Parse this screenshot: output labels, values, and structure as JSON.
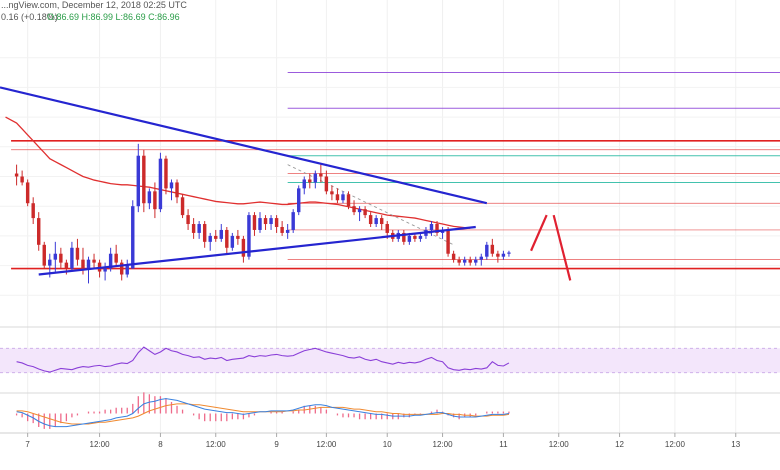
{
  "header": {
    "line1": "...ngView.com, December 12, 2018 02:25 UTC",
    "line2_change": "0.16 (+0.18%)",
    "line2_ohlc": "O:86.69 H:86.99 L:86.69 C:86.96"
  },
  "colors": {
    "bull": "#3a3ad6",
    "bear": "#cc2a2a",
    "trendline": "#2525d0",
    "ma": "#e03030",
    "horizontal": "#e02020",
    "fib_purple": "#8a3fd8",
    "fib_teal": "#23b8a0",
    "rsi": "#8a3fd8",
    "rsi_band": "#f3e6fb",
    "macd": "#3a82e0",
    "signal": "#f08a30",
    "hist": "#ee6a8a"
  },
  "chart_data": {
    "type": "candlestick",
    "instrument_price_range": [
      85.0,
      90.0
    ],
    "candles": [
      [
        1,
        87.55,
        87.7,
        87.35,
        87.5
      ],
      [
        2,
        87.5,
        87.6,
        87.35,
        87.4
      ],
      [
        3,
        87.4,
        87.45,
        87.0,
        87.05
      ],
      [
        4,
        87.05,
        87.15,
        86.7,
        86.8
      ],
      [
        5,
        86.8,
        86.9,
        86.25,
        86.35
      ],
      [
        6,
        86.35,
        86.4,
        85.95,
        86.0
      ],
      [
        7,
        86.0,
        86.2,
        85.8,
        86.1
      ],
      [
        8,
        86.1,
        86.4,
        85.9,
        86.2
      ],
      [
        9,
        86.2,
        86.3,
        85.95,
        86.05
      ],
      [
        10,
        86.05,
        86.1,
        85.85,
        85.95
      ],
      [
        11,
        85.95,
        86.4,
        85.9,
        86.3
      ],
      [
        12,
        86.3,
        86.45,
        86.0,
        86.1
      ],
      [
        13,
        86.1,
        86.3,
        85.85,
        85.95
      ],
      [
        14,
        85.95,
        86.15,
        85.7,
        86.1
      ],
      [
        15,
        86.1,
        86.2,
        85.95,
        86.05
      ],
      [
        16,
        86.05,
        86.1,
        85.8,
        85.9
      ],
      [
        17,
        85.9,
        86.05,
        85.75,
        85.95
      ],
      [
        18,
        85.95,
        86.3,
        85.9,
        86.2
      ],
      [
        19,
        86.2,
        86.35,
        86.0,
        86.05
      ],
      [
        20,
        86.05,
        86.1,
        85.75,
        85.85
      ],
      [
        21,
        85.85,
        86.1,
        85.8,
        86.0
      ],
      [
        22,
        85.95,
        87.1,
        85.95,
        87.0
      ],
      [
        23,
        87.0,
        88.05,
        86.9,
        87.85
      ],
      [
        24,
        87.85,
        87.95,
        86.9,
        87.05
      ],
      [
        25,
        87.05,
        87.3,
        86.95,
        87.25
      ],
      [
        26,
        87.25,
        87.4,
        86.8,
        86.95
      ],
      [
        27,
        86.95,
        87.9,
        86.9,
        87.8
      ],
      [
        28,
        87.8,
        87.85,
        87.2,
        87.3
      ],
      [
        29,
        87.3,
        87.45,
        87.1,
        87.4
      ],
      [
        30,
        87.4,
        87.45,
        87.05,
        87.15
      ],
      [
        31,
        87.15,
        87.2,
        86.8,
        86.85
      ],
      [
        32,
        86.85,
        86.95,
        86.6,
        86.7
      ],
      [
        33,
        86.7,
        86.8,
        86.45,
        86.55
      ],
      [
        34,
        86.55,
        86.75,
        86.45,
        86.7
      ],
      [
        35,
        86.7,
        86.75,
        86.3,
        86.4
      ],
      [
        36,
        86.4,
        86.55,
        86.25,
        86.5
      ],
      [
        37,
        86.5,
        86.6,
        86.4,
        86.45
      ],
      [
        38,
        86.45,
        86.7,
        86.4,
        86.6
      ],
      [
        39,
        86.6,
        86.65,
        86.2,
        86.3
      ],
      [
        40,
        86.3,
        86.55,
        86.25,
        86.5
      ],
      [
        41,
        86.5,
        86.6,
        86.35,
        86.45
      ],
      [
        42,
        86.45,
        86.5,
        86.05,
        86.15
      ],
      [
        43,
        86.15,
        86.9,
        86.1,
        86.85
      ],
      [
        44,
        86.85,
        86.9,
        86.5,
        86.6
      ],
      [
        45,
        86.6,
        86.9,
        86.55,
        86.8
      ],
      [
        46,
        86.8,
        86.85,
        86.6,
        86.7
      ],
      [
        47,
        86.7,
        86.85,
        86.6,
        86.8
      ],
      [
        48,
        86.8,
        86.85,
        86.55,
        86.65
      ],
      [
        49,
        86.65,
        86.75,
        86.5,
        86.55
      ],
      [
        50,
        86.55,
        86.7,
        86.45,
        86.6
      ],
      [
        51,
        86.6,
        86.95,
        86.55,
        86.9
      ],
      [
        52,
        86.9,
        87.35,
        86.85,
        87.3
      ],
      [
        53,
        87.3,
        87.5,
        87.2,
        87.45
      ],
      [
        54,
        87.45,
        87.55,
        87.3,
        87.4
      ],
      [
        55,
        87.4,
        87.6,
        87.3,
        87.55
      ],
      [
        56,
        87.55,
        87.7,
        87.4,
        87.5
      ],
      [
        57,
        87.5,
        87.6,
        87.2,
        87.25
      ],
      [
        58,
        87.25,
        87.35,
        87.1,
        87.2
      ],
      [
        59,
        87.2,
        87.3,
        87.05,
        87.1
      ],
      [
        60,
        87.1,
        87.25,
        87.05,
        87.2
      ],
      [
        61,
        87.2,
        87.25,
        86.95,
        87.0
      ],
      [
        62,
        87.0,
        87.1,
        86.85,
        86.9
      ],
      [
        63,
        86.9,
        87.0,
        86.75,
        86.95
      ],
      [
        64,
        86.95,
        87.0,
        86.8,
        86.85
      ],
      [
        65,
        86.85,
        86.9,
        86.65,
        86.7
      ],
      [
        66,
        86.7,
        86.85,
        86.65,
        86.8
      ],
      [
        67,
        86.8,
        86.85,
        86.6,
        86.7
      ],
      [
        68,
        86.7,
        86.75,
        86.45,
        86.55
      ],
      [
        69,
        86.55,
        86.6,
        86.4,
        86.45
      ],
      [
        70,
        86.45,
        86.6,
        86.4,
        86.55
      ],
      [
        71,
        86.55,
        86.6,
        86.35,
        86.4
      ],
      [
        72,
        86.4,
        86.55,
        86.35,
        86.5
      ],
      [
        73,
        86.5,
        86.55,
        86.4,
        86.45
      ],
      [
        74,
        86.45,
        86.55,
        86.4,
        86.5
      ],
      [
        75,
        86.5,
        86.65,
        86.45,
        86.6
      ],
      [
        76,
        86.6,
        86.75,
        86.5,
        86.7
      ],
      [
        77,
        86.7,
        86.75,
        86.5,
        86.55
      ],
      [
        78,
        86.55,
        86.65,
        86.45,
        86.6
      ],
      [
        79,
        86.6,
        86.65,
        86.15,
        86.2
      ],
      [
        80,
        86.2,
        86.25,
        86.05,
        86.1
      ],
      [
        81,
        86.1,
        86.15,
        86.0,
        86.05
      ],
      [
        82,
        86.05,
        86.15,
        86.0,
        86.1
      ],
      [
        83,
        86.1,
        86.15,
        86.0,
        86.05
      ],
      [
        84,
        86.05,
        86.15,
        86.0,
        86.1
      ],
      [
        85,
        86.1,
        86.2,
        86.0,
        86.15
      ],
      [
        86,
        86.15,
        86.4,
        86.1,
        86.35
      ],
      [
        87,
        86.35,
        86.45,
        86.15,
        86.2
      ],
      [
        88,
        86.2,
        86.25,
        86.05,
        86.15
      ],
      [
        89,
        86.15,
        86.25,
        86.1,
        86.2
      ],
      [
        90,
        86.2,
        86.25,
        86.15,
        86.22
      ]
    ],
    "moving_average": [
      88.5,
      88.45,
      88.4,
      88.3,
      88.2,
      88.1,
      88.0,
      87.9,
      87.8,
      87.75,
      87.7,
      87.65,
      87.6,
      87.55,
      87.5,
      87.47,
      87.44,
      87.42,
      87.4,
      87.38,
      87.37,
      87.36,
      87.36,
      87.35,
      87.34,
      87.33,
      87.32,
      87.3,
      87.28,
      87.26,
      87.24,
      87.22,
      87.2,
      87.18,
      87.16,
      87.14,
      87.12,
      87.1,
      87.08,
      87.07,
      87.06,
      87.05,
      87.04,
      87.04,
      87.05,
      87.06,
      87.07,
      87.06,
      87.05,
      87.04,
      87.03,
      87.03,
      87.04,
      87.05,
      87.06,
      87.07,
      87.07,
      87.06,
      87.05,
      87.04,
      87.03,
      87.01,
      86.99,
      86.97,
      86.95,
      86.93,
      86.91,
      86.89,
      86.87,
      86.85,
      86.84,
      86.83,
      86.82,
      86.81,
      86.8,
      86.78,
      86.76,
      86.74,
      86.72,
      86.7,
      86.68,
      86.66,
      86.65,
      86.64,
      86.63
    ],
    "trendlines": [
      {
        "from": [
          -2,
          89.0
        ],
        "to": [
          86,
          87.05
        ],
        "role": "upper"
      },
      {
        "from": [
          5,
          85.85
        ],
        "to": [
          84,
          86.65
        ],
        "role": "lower"
      }
    ],
    "dashed_line": {
      "from": [
        50,
        87.7
      ],
      "to": [
        80,
        86.35
      ]
    },
    "horizontal_levels": [
      {
        "price": 88.1,
        "kind": "major",
        "from": 0
      },
      {
        "price": 87.95,
        "kind": "minor",
        "from": 0
      },
      {
        "price": 85.95,
        "kind": "major",
        "from": 0
      },
      {
        "price": 87.55,
        "kind": "thin",
        "from": 50
      },
      {
        "price": 87.05,
        "kind": "thin",
        "from": 50
      },
      {
        "price": 86.6,
        "kind": "thin",
        "from": 50
      },
      {
        "price": 86.1,
        "kind": "thin",
        "from": 50
      }
    ],
    "fib_levels": [
      {
        "price": 89.25,
        "color": "purple"
      },
      {
        "price": 88.65,
        "color": "purple"
      },
      {
        "price": 87.85,
        "color": "teal"
      },
      {
        "price": 87.4,
        "color": "teal"
      }
    ],
    "projection": [
      [
        94,
        86.25
      ],
      [
        97,
        86.85
      ],
      [
        100,
        85.75
      ]
    ],
    "rsi": {
      "values": [
        48,
        46,
        42,
        40,
        36,
        33,
        31,
        34,
        37,
        36,
        35,
        38,
        40,
        39,
        41,
        42,
        40,
        41,
        44,
        46,
        45,
        50,
        63,
        72,
        66,
        60,
        64,
        70,
        66,
        64,
        60,
        58,
        55,
        56,
        52,
        54,
        53,
        55,
        50,
        52,
        53,
        54,
        58,
        56,
        58,
        57,
        59,
        60,
        58,
        57,
        58,
        62,
        66,
        68,
        70,
        67,
        64,
        62,
        60,
        58,
        55,
        54,
        56,
        52,
        50,
        52,
        48,
        46,
        44,
        47,
        45,
        47,
        46,
        48,
        52,
        55,
        50,
        48,
        38,
        35,
        34,
        36,
        35,
        37,
        36,
        38,
        48,
        42,
        41,
        46
      ]
    },
    "macd": {
      "macd_line": [
        0.02,
        0.01,
        -0.02,
        -0.05,
        -0.09,
        -0.12,
        -0.14,
        -0.15,
        -0.15,
        -0.15,
        -0.14,
        -0.13,
        -0.12,
        -0.11,
        -0.1,
        -0.09,
        -0.08,
        -0.07,
        -0.05,
        -0.04,
        -0.03,
        0.0,
        0.06,
        0.11,
        0.13,
        0.14,
        0.16,
        0.17,
        0.16,
        0.15,
        0.13,
        0.11,
        0.09,
        0.07,
        0.05,
        0.04,
        0.03,
        0.02,
        0.01,
        0.01,
        0.0,
        -0.01,
        0.0,
        0.01,
        0.02,
        0.02,
        0.03,
        0.03,
        0.03,
        0.03,
        0.04,
        0.06,
        0.08,
        0.09,
        0.1,
        0.1,
        0.09,
        0.07,
        0.06,
        0.05,
        0.04,
        0.03,
        0.02,
        0.01,
        0.0,
        -0.01,
        -0.01,
        -0.02,
        -0.03,
        -0.03,
        -0.03,
        -0.03,
        -0.02,
        -0.02,
        -0.01,
        0.0,
        0.01,
        0.01,
        -0.01,
        -0.03,
        -0.04,
        -0.04,
        -0.04,
        -0.04,
        -0.03,
        -0.02,
        -0.01,
        -0.01,
        -0.01,
        0.0
      ],
      "signal_line": [
        0.03,
        0.03,
        0.02,
        0.0,
        -0.02,
        -0.04,
        -0.06,
        -0.08,
        -0.1,
        -0.11,
        -0.12,
        -0.12,
        -0.12,
        -0.12,
        -0.11,
        -0.1,
        -0.1,
        -0.09,
        -0.08,
        -0.07,
        -0.06,
        -0.05,
        -0.03,
        0.0,
        0.03,
        0.05,
        0.07,
        0.09,
        0.1,
        0.11,
        0.11,
        0.11,
        0.1,
        0.1,
        0.09,
        0.08,
        0.07,
        0.06,
        0.05,
        0.04,
        0.03,
        0.02,
        0.02,
        0.02,
        0.02,
        0.02,
        0.02,
        0.02,
        0.02,
        0.03,
        0.03,
        0.04,
        0.04,
        0.05,
        0.06,
        0.07,
        0.07,
        0.07,
        0.07,
        0.07,
        0.06,
        0.05,
        0.05,
        0.04,
        0.03,
        0.02,
        0.02,
        0.01,
        0.0,
        0.0,
        -0.01,
        -0.01,
        -0.01,
        -0.01,
        -0.01,
        -0.01,
        -0.01,
        0.0,
        0.0,
        -0.01,
        -0.01,
        -0.02,
        -0.02,
        -0.03,
        -0.03,
        -0.03,
        -0.02,
        -0.02,
        -0.02,
        -0.01
      ]
    },
    "x_axis": {
      "ticks": [
        {
          "index": 3,
          "label": "7"
        },
        {
          "index": 16,
          "label": "12:00"
        },
        {
          "index": 27,
          "label": "8"
        },
        {
          "index": 37,
          "label": "12:00"
        },
        {
          "index": 48,
          "label": "9"
        },
        {
          "index": 57,
          "label": "12:00"
        },
        {
          "index": 68,
          "label": "10"
        },
        {
          "index": 78,
          "label": "12:00"
        },
        {
          "index": 89,
          "label": "11"
        },
        {
          "index": 99,
          "label": "12:00"
        },
        {
          "index": 110,
          "label": "12"
        },
        {
          "index": 120,
          "label": "12:00"
        },
        {
          "index": 131,
          "label": "13"
        }
      ],
      "index_range": [
        -2,
        139
      ]
    },
    "grid": true
  }
}
